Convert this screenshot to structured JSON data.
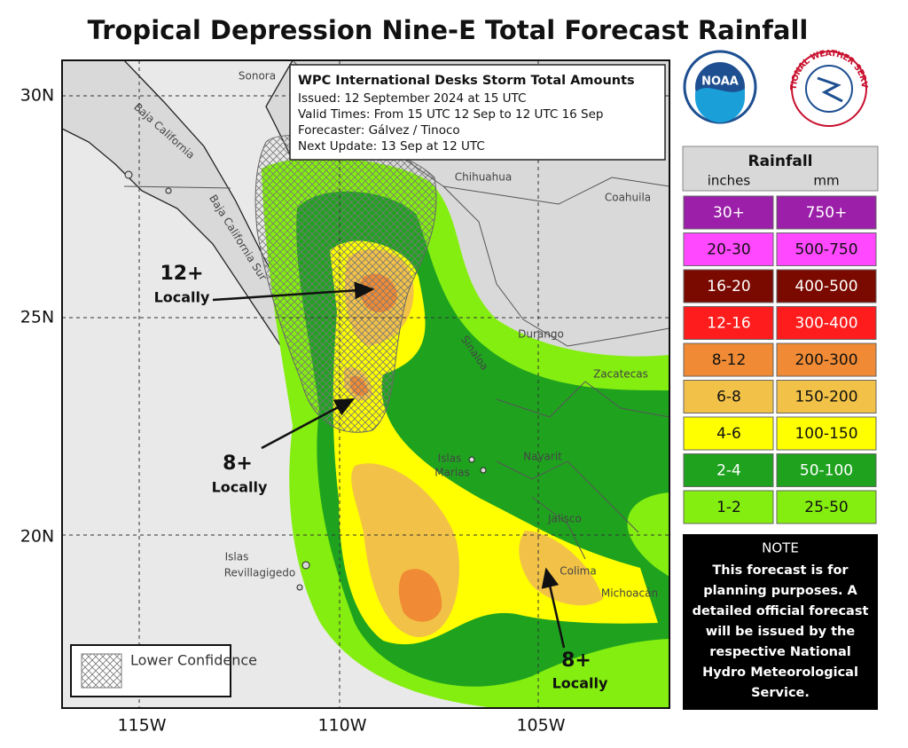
{
  "title": "Tropical Depression Nine-E Total Forecast Rainfall",
  "info_box": {
    "heading": "WPC International Desks Storm Total Amounts",
    "lines": [
      "Issued:  12 September 2024 at 15 UTC",
      "Valid Times:  From 15 UTC 12 Sep  to  12 UTC 16 Sep",
      "Forecaster: Gálvez / Tinoco",
      "Next Update: 13 Sep at 12 UTC"
    ]
  },
  "logos": {
    "noaa": "NOAA",
    "nws": "NATIONAL WEATHER SERVICE"
  },
  "latitudes": [
    "30N",
    "25N",
    "20N"
  ],
  "longitudes": [
    "115W",
    "110W",
    "105W"
  ],
  "places": [
    "Sonora",
    "Baja California",
    "Baja California Sur",
    "Chihuahua",
    "Coahuila",
    "Durango",
    "Sinaloa",
    "Zacatecas",
    "Nayarit",
    "Islas",
    "Marias",
    "Jalisco",
    "Colima",
    "Michoacán",
    "Islas",
    "Revillagigedo"
  ],
  "annotations": [
    {
      "amount": "12+",
      "note": "Locally"
    },
    {
      "amount": "8+",
      "note": "Locally"
    },
    {
      "amount": "8+",
      "note": "Locally"
    }
  ],
  "confidence_key": "Lower Confidence",
  "legend": {
    "title": "Rainfall",
    "units": [
      "inches",
      "mm"
    ],
    "rows": [
      {
        "inches": "30+",
        "mm": "750+",
        "color": "#9b1fa8"
      },
      {
        "inches": "20-30",
        "mm": "500-750",
        "color": "#ff48ff"
      },
      {
        "inches": "16-20",
        "mm": "400-500",
        "color": "#7a0a00"
      },
      {
        "inches": "12-16",
        "mm": "300-400",
        "color": "#ff1c1c"
      },
      {
        "inches": "8-12",
        "mm": "200-300",
        "color": "#f08a34"
      },
      {
        "inches": "6-8",
        "mm": "150-200",
        "color": "#f2c248"
      },
      {
        "inches": "4-6",
        "mm": "100-150",
        "color": "#ffff00"
      },
      {
        "inches": "2-4",
        "mm": "50-100",
        "color": "#1fa31f"
      },
      {
        "inches": "1-2",
        "mm": "25-50",
        "color": "#84ee10"
      }
    ]
  },
  "note": {
    "heading": "NOTE",
    "lines": [
      "This forecast is for",
      "planning purposes. A",
      "detailed official forecast",
      "will be issued by the",
      "respective National",
      "Hydro Meteorological",
      "Service."
    ]
  }
}
